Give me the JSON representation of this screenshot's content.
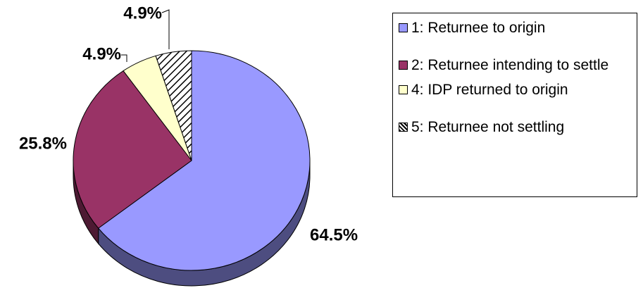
{
  "chart_data": {
    "type": "pie",
    "categories": [
      "1: Returnee to origin",
      "2: Returnee intending to settle",
      "4: IDP returned to origin",
      "5: Returnee not settling"
    ],
    "values": [
      64.5,
      25.8,
      4.9,
      4.9
    ],
    "value_labels": [
      "64.5%",
      "25.8%",
      "4.9%",
      "4.9%"
    ],
    "colors": [
      "#9999ff",
      "#993366",
      "#ffffcc",
      "#ffffff"
    ],
    "patterns": [
      null,
      null,
      null,
      "diagonal-hatch"
    ],
    "legend": "right"
  }
}
